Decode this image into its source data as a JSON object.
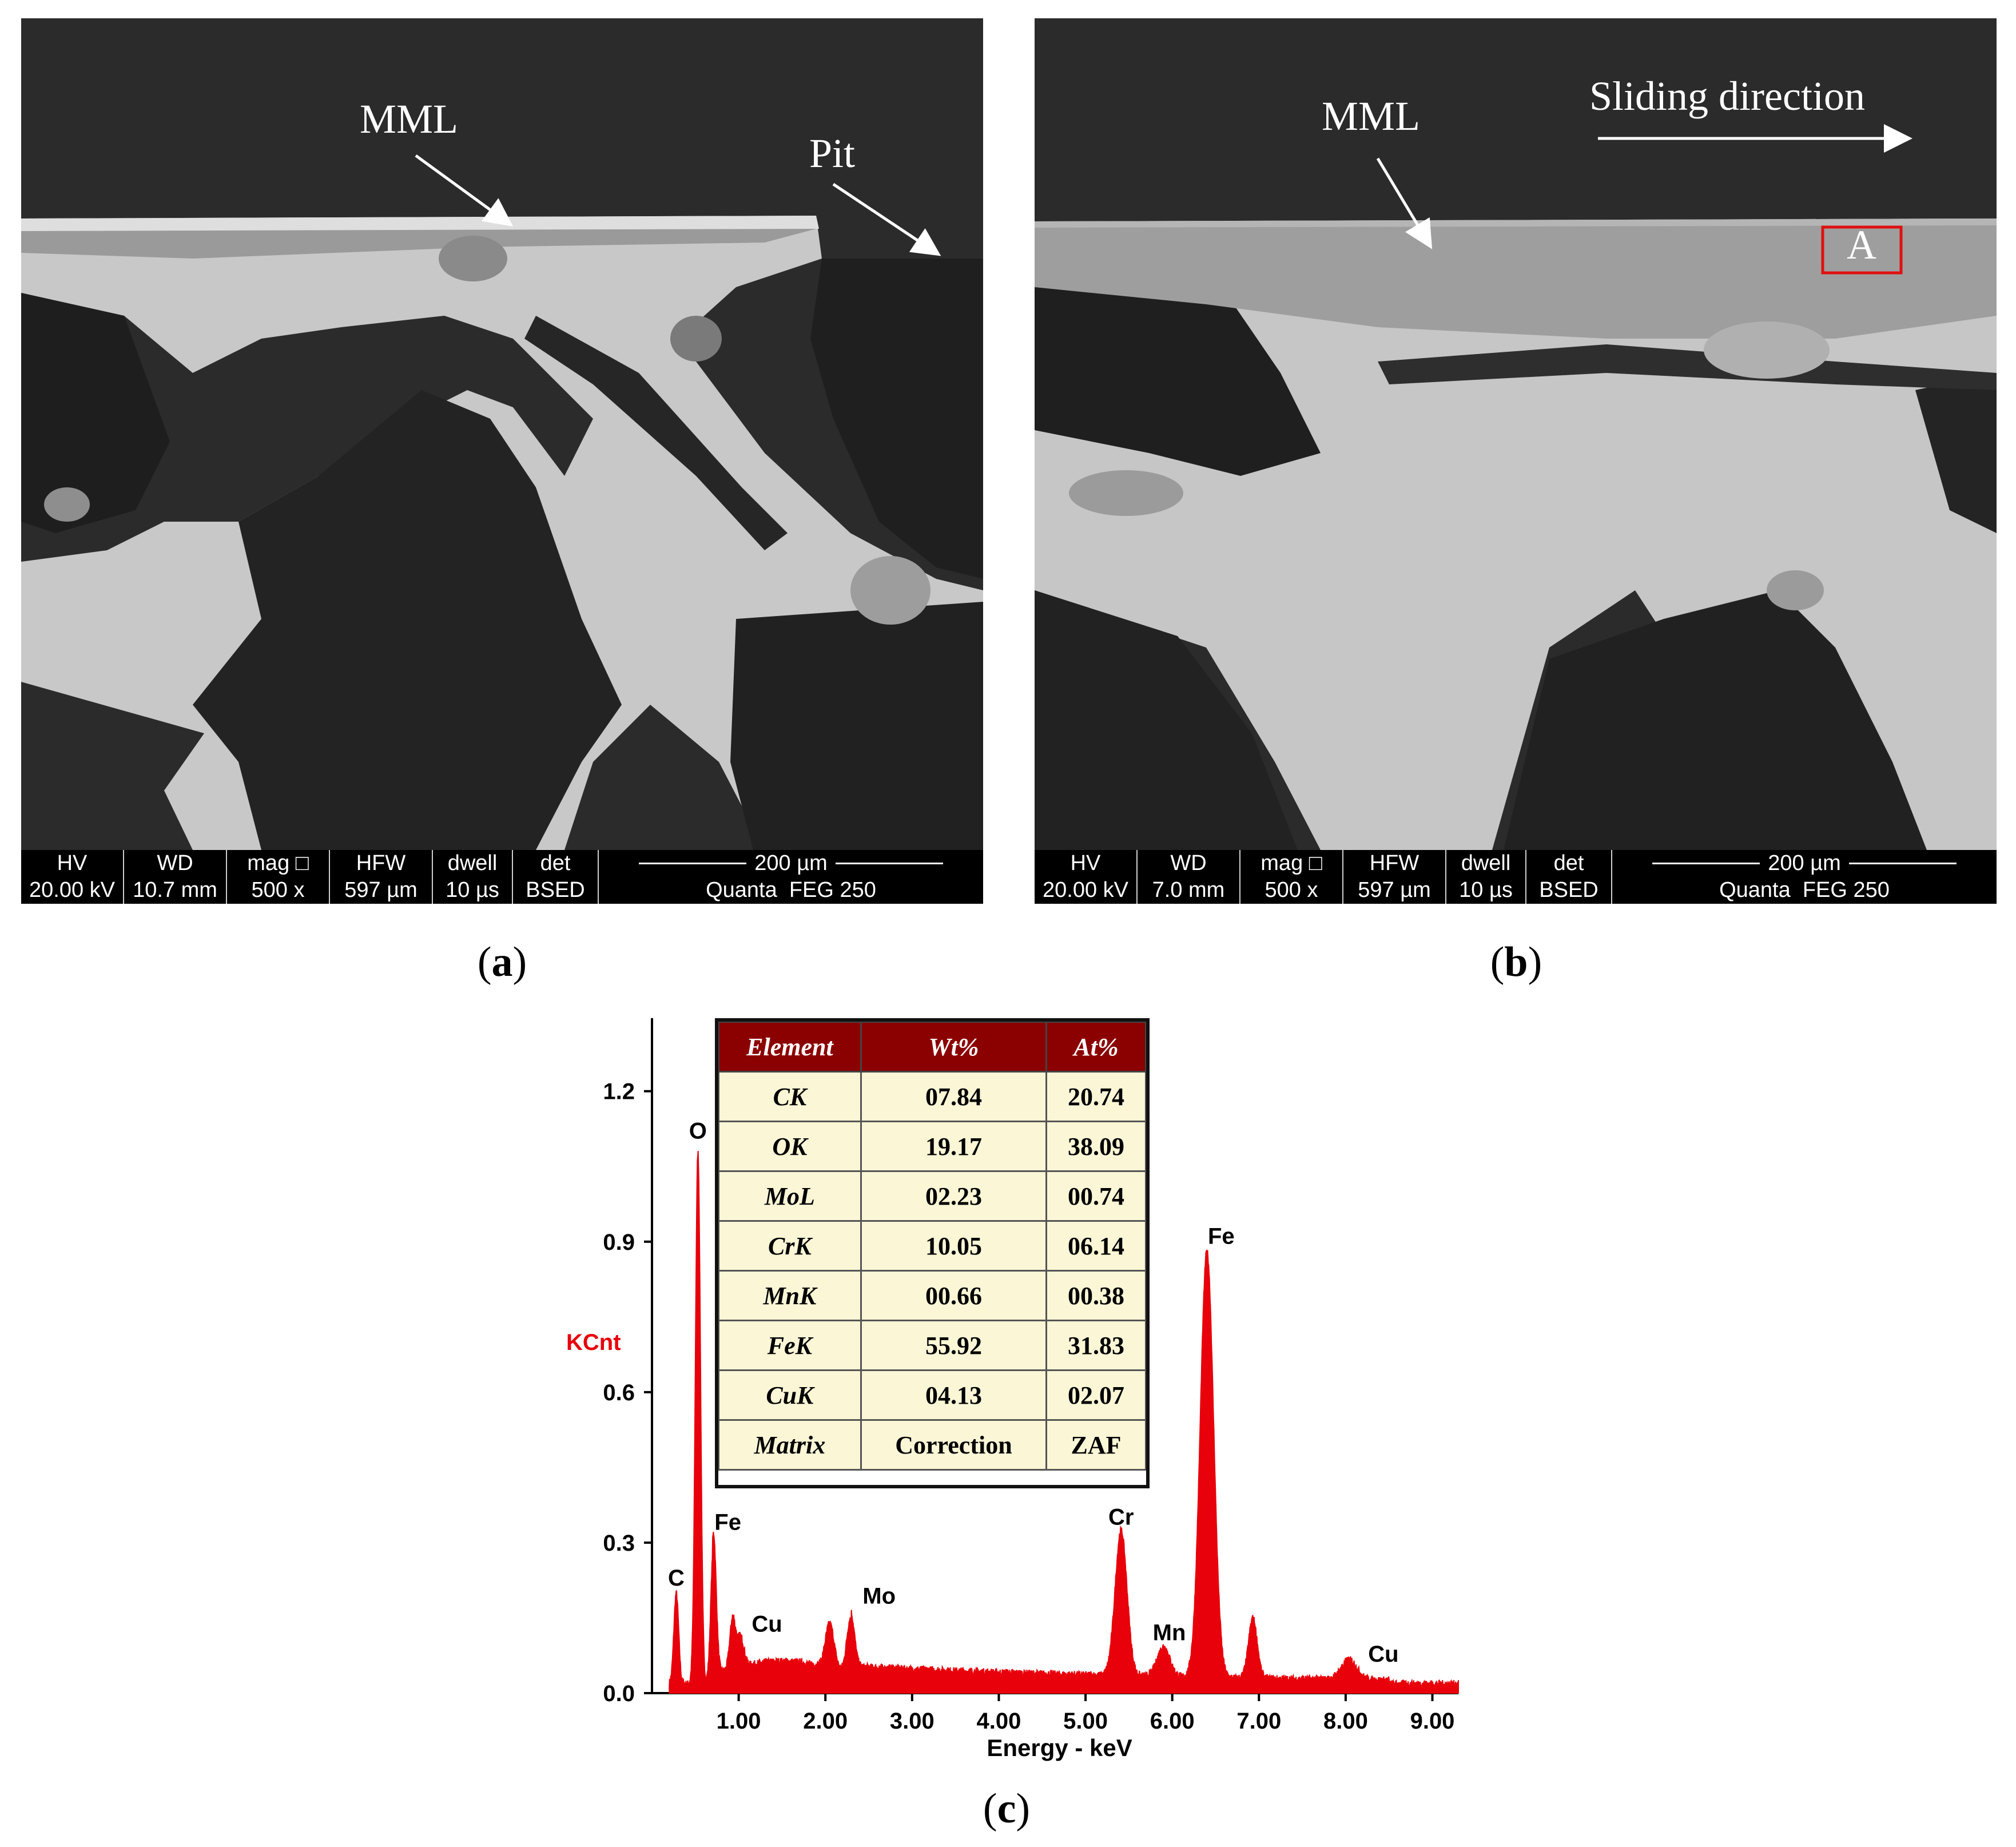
{
  "panel_a": {
    "annotations": {
      "mml": "MML",
      "pit": "Pit"
    },
    "databar": {
      "headers": [
        "HV",
        "WD",
        "mag □",
        "HFW",
        "dwell",
        "det"
      ],
      "values": [
        "20.00 kV",
        "10.7 mm",
        "500 x",
        "597 µm",
        "10 µs",
        "BSED"
      ],
      "scale_label": "200 µm",
      "instrument": "Quanta  FEG 250"
    },
    "caption_letter": "a"
  },
  "panel_b": {
    "annotations": {
      "mml": "MML",
      "sliding": "Sliding direction",
      "region": "A"
    },
    "region_box_color": "#e01010",
    "databar": {
      "headers": [
        "HV",
        "WD",
        "mag □",
        "HFW",
        "dwell",
        "det"
      ],
      "values": [
        "20.00 kV",
        "7.0 mm",
        "500 x",
        "597 µm",
        "10 µs",
        "BSED"
      ],
      "scale_label": "200 µm",
      "instrument": "Quanta  FEG 250"
    },
    "caption_letter": "b"
  },
  "panel_c": {
    "caption_letter": "c",
    "table": {
      "headers": [
        "Element",
        "Wt%",
        "At%"
      ],
      "rows": [
        [
          "CK",
          "07.84",
          "20.74"
        ],
        [
          "OK",
          "19.17",
          "38.09"
        ],
        [
          "MoL",
          "02.23",
          "00.74"
        ],
        [
          "CrK",
          "10.05",
          "06.14"
        ],
        [
          "MnK",
          "00.66",
          "00.38"
        ],
        [
          "FeK",
          "55.92",
          "31.83"
        ],
        [
          "CuK",
          "04.13",
          "02.07"
        ],
        [
          "Matrix",
          "Correction",
          "ZAF"
        ]
      ]
    }
  },
  "chart_data": {
    "type": "area",
    "ylabel": "KCnt",
    "xlabel": "Energy - keV",
    "ylim": [
      0,
      1.3
    ],
    "xlim": [
      0,
      9.3
    ],
    "yticks": [
      "1.2",
      "0.9",
      "0.6",
      "0.3",
      "0.0"
    ],
    "ytick_values": [
      1.2,
      0.9,
      0.6,
      0.3,
      0.0
    ],
    "xticks": [
      "1.00",
      "2.00",
      "3.00",
      "4.00",
      "5.00",
      "6.00",
      "7.00",
      "8.00",
      "9.00"
    ],
    "xtick_values": [
      1,
      2,
      3,
      4,
      5,
      6,
      7,
      8,
      9
    ],
    "color": "#e8000b",
    "ylabel_color": "#e8000b",
    "peaks": [
      {
        "label": "C",
        "x": 0.28,
        "y": 0.18
      },
      {
        "label": "O",
        "x": 0.53,
        "y": 1.06
      },
      {
        "label": "Fe",
        "x": 0.71,
        "y": 0.28
      },
      {
        "label": "Cu",
        "x": 0.93,
        "y": 0.1
      },
      {
        "label": "Mo",
        "x": 2.29,
        "y": 0.11
      },
      {
        "label": "Cr",
        "x": 5.41,
        "y": 0.29
      },
      {
        "label": "Mn",
        "x": 5.9,
        "y": 0.06
      },
      {
        "label": "Fe",
        "x": 6.4,
        "y": 0.85
      },
      {
        "label": "Cu",
        "x": 8.04,
        "y": 0.04
      }
    ]
  }
}
